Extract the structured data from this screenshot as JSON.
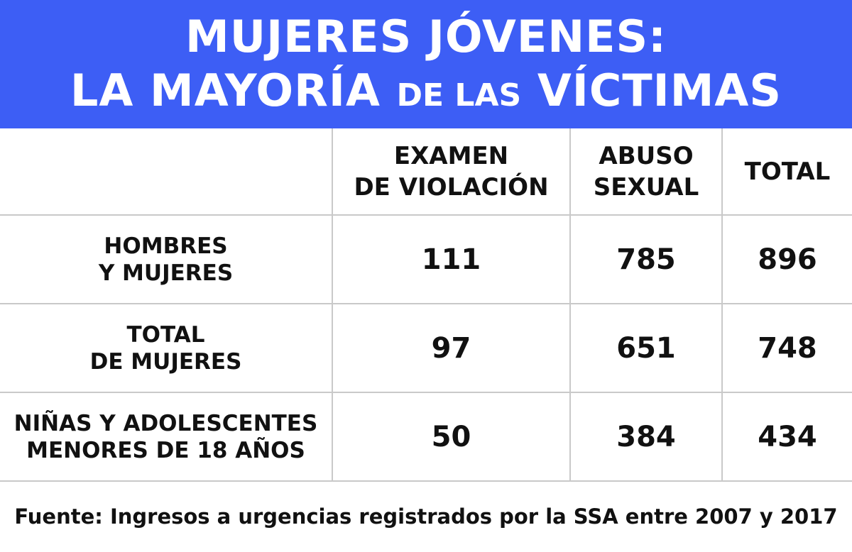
{
  "header": {
    "title_line1": "MUJERES JÓVENES:",
    "title_line2_a": "LA MAYORÍA",
    "title_line2_b": "DE LAS",
    "title_line2_c": "VÍCTIMAS",
    "background_color": "#3d5ef5",
    "text_color": "#ffffff"
  },
  "chart_data": {
    "type": "table",
    "title": "MUJERES JÓVENES: LA MAYORÍA DE LAS VÍCTIMAS",
    "columns": [
      "",
      "EXAMEN\nDE VIOLACIÓN",
      "ABUSO\nSEXUAL",
      "TOTAL"
    ],
    "rows": [
      {
        "label": "HOMBRES\nY MUJERES",
        "values": [
          111,
          785,
          896
        ]
      },
      {
        "label": "TOTAL\nDE MUJERES",
        "values": [
          97,
          651,
          748
        ]
      },
      {
        "label": "NIÑAS Y ADOLESCENTES\nMENORES DE 18 AÑOS",
        "values": [
          50,
          384,
          434
        ]
      }
    ],
    "grid": true
  },
  "source": "Fuente: Ingresos a urgencias registrados por la SSA entre 2007 y 2017"
}
